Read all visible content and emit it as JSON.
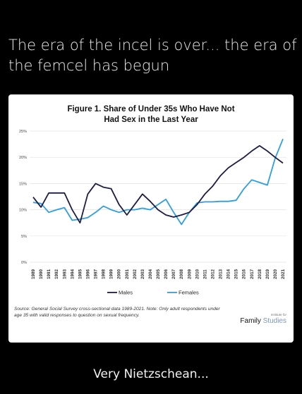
{
  "post": {
    "caption": "The era of the incel is over... the era of the femcel has begun",
    "bottom_text": "Very Nietzschean..."
  },
  "chart_data": {
    "type": "line",
    "title_line1": "Figure 1. Share of Under 35s Who Have Not",
    "title_line2": "Had Sex in the Last Year",
    "x": [
      "1989",
      "1990",
      "1991",
      "1992",
      "1993",
      "1994",
      "1995",
      "1996",
      "1997",
      "1998",
      "1999",
      "2000",
      "2001",
      "2002",
      "2003",
      "2004",
      "2005",
      "2006",
      "2007",
      "2008",
      "2009",
      "2010",
      "2011",
      "2012",
      "2013",
      "2014",
      "2015",
      "2016",
      "2017",
      "2018",
      "2019",
      "2020",
      "2021"
    ],
    "ylim": [
      0,
      25
    ],
    "yticks": [
      "0%",
      "5%",
      "10%",
      "15%",
      "20%",
      "25%"
    ],
    "grid": true,
    "legend_position": "bottom-center",
    "series": [
      {
        "name": "Males",
        "color": "#1c1c44",
        "values": [
          12.4,
          10.5,
          13.2,
          13.2,
          13.2,
          10.0,
          7.5,
          13.0,
          15.0,
          14.3,
          14.0,
          11.0,
          9.0,
          11.0,
          13.0,
          11.6,
          10.0,
          9.0,
          8.6,
          9.0,
          9.5,
          11.0,
          13.0,
          14.5,
          16.5,
          18.0,
          19.0,
          20.0,
          21.2,
          22.2,
          21.2,
          20.0,
          18.9
        ]
      },
      {
        "name": "Females",
        "color": "#2e9ee0",
        "values": [
          11.4,
          11.2,
          9.5,
          10.0,
          10.4,
          8.0,
          8.2,
          8.5,
          9.5,
          10.7,
          10.0,
          9.5,
          10.0,
          10.0,
          10.3,
          10.0,
          11.0,
          12.0,
          9.5,
          7.2,
          9.5,
          11.3,
          11.5,
          11.5,
          11.6,
          11.6,
          11.8,
          14.0,
          15.7,
          15.2,
          14.7,
          19.8,
          23.5
        ]
      }
    ]
  },
  "footer": {
    "source_text": "Source: General Social Survey cross-sectional data 1989-2021. Note: Only adult respondents under age 35 with valid responses to question on sexual frequency.",
    "brand_tag": "Institute for",
    "brand_part1": "Family",
    "brand_part2": "Studies"
  }
}
